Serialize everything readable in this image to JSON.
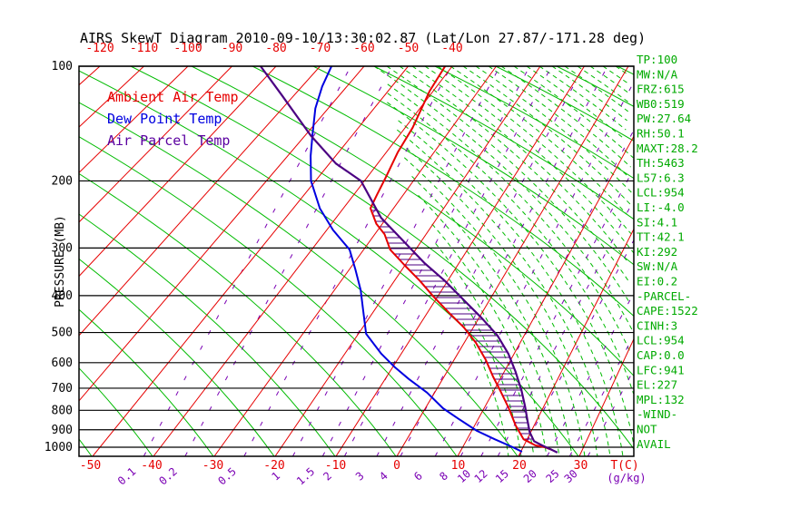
{
  "title": "AIRS SkewT Diagram 2010-09-10/13:30:02.87 (Lat/Lon 27.87/-171.28 deg)",
  "axes": {
    "pressure_label": "PRESSURE (MB)",
    "pressure_ticks": [
      100,
      200,
      300,
      400,
      500,
      600,
      700,
      800,
      900,
      1000
    ],
    "top_temp_ticks": [
      -120,
      -110,
      -100,
      -90,
      -80,
      -70,
      -60,
      -50,
      -40
    ],
    "bottom_temp_ticks": [
      -50,
      -40,
      -30,
      -20,
      -10,
      0,
      10,
      20,
      30
    ],
    "temp_label": "T(C)",
    "mixing_label": "(g/kg)",
    "mixing_ratio_ticks": [
      0.1,
      0.2,
      0.5,
      1,
      1.5,
      2,
      3,
      4,
      6,
      8,
      10,
      12,
      15,
      20,
      25,
      30
    ]
  },
  "stats_panel": [
    "TP:100",
    "MW:N/A",
    "FRZ:615",
    "WB0:519",
    "PW:27.64",
    "RH:50.1",
    "MAXT:28.2",
    "TH:5463",
    "L57:6.3",
    "LCL:954",
    "LI:-4.0",
    "SI:4.1",
    "TT:42.1",
    "KI:292",
    "SW:N/A",
    "EI:0.2",
    "-PARCEL-",
    "CAPE:1522",
    "CINH:3",
    "LCL:954",
    "CAP:0.0",
    "LFC:941",
    "EL:227",
    "MPL:132",
    "-WIND-",
    "NOT",
    "AVAIL"
  ],
  "colors": {
    "isotherm": "#e60000",
    "dry_adiabat": "#00bb00",
    "moist_adiabat": "#00bb00",
    "mixing_ratio": "#7a00b4",
    "pressure_line": "#000000",
    "panel_text": "#00aa00",
    "hatch": "#4b0082",
    "tick_red": "#e60000",
    "tick_purple": "#7a00b4"
  },
  "chart_data": {
    "type": "line",
    "note": "Skew-T log-P sounding; points are [pressure_mb, temperature_C]",
    "pressure_range": [
      100,
      1050
    ],
    "surface_temp_range": [
      -50,
      30
    ],
    "legend_position": "top-left inside plot",
    "grid": "skewed isotherms / dry adiabats / dashed moist adiabats / dashed mixing-ratio lines",
    "series": [
      {
        "name": "Ambient Air Temp",
        "color": "#e60000",
        "points": [
          [
            100,
            -41.6
          ],
          [
            116,
            -40.8
          ],
          [
            145,
            -38.4
          ],
          [
            168,
            -37.6
          ],
          [
            195,
            -36.2
          ],
          [
            218,
            -35.3
          ],
          [
            236,
            -34.6
          ],
          [
            259,
            -31.2
          ],
          [
            276,
            -28.1
          ],
          [
            303,
            -24.9
          ],
          [
            334,
            -19.9
          ],
          [
            366,
            -15.2
          ],
          [
            403,
            -10.7
          ],
          [
            445,
            -5.9
          ],
          [
            485,
            -1.7
          ],
          [
            532,
            2.1
          ],
          [
            590,
            5.6
          ],
          [
            652,
            8.5
          ],
          [
            715,
            11.3
          ],
          [
            790,
            14.2
          ],
          [
            877,
            16.9
          ],
          [
            953,
            19.4
          ],
          [
            989,
            21.9
          ],
          [
            1000,
            23.6
          ],
          [
            1016,
            25.0
          ]
        ]
      },
      {
        "name": "Dew Point Temp",
        "color": "#0000e0",
        "points": [
          [
            100,
            -67.4
          ],
          [
            113,
            -65.5
          ],
          [
            129,
            -62.8
          ],
          [
            150,
            -58.8
          ],
          [
            172,
            -55.2
          ],
          [
            200,
            -50.9
          ],
          [
            236,
            -44.7
          ],
          [
            269,
            -38.8
          ],
          [
            303,
            -32.7
          ],
          [
            341,
            -28.9
          ],
          [
            387,
            -25.1
          ],
          [
            433,
            -22.3
          ],
          [
            504,
            -18.6
          ],
          [
            569,
            -13.5
          ],
          [
            617,
            -9.6
          ],
          [
            662,
            -5.9
          ],
          [
            719,
            -1.3
          ],
          [
            790,
            3.0
          ],
          [
            843,
            6.7
          ],
          [
            906,
            10.9
          ],
          [
            953,
            14.6
          ],
          [
            1000,
            18.3
          ],
          [
            1028,
            20.2
          ]
        ]
      },
      {
        "name": "Air Parcel Temp",
        "color": "#4b0082",
        "points": [
          [
            100,
            -83.5
          ],
          [
            119,
            -72.8
          ],
          [
            152,
            -58.8
          ],
          [
            180,
            -48.7
          ],
          [
            200,
            -40.7
          ],
          [
            250,
            -31.1
          ],
          [
            286,
            -23.8
          ],
          [
            329,
            -16.5
          ],
          [
            366,
            -10.5
          ],
          [
            414,
            -4.4
          ],
          [
            457,
            0.4
          ],
          [
            509,
            5.2
          ],
          [
            569,
            9.0
          ],
          [
            634,
            12.0
          ],
          [
            708,
            14.7
          ],
          [
            781,
            16.8
          ],
          [
            849,
            18.4
          ],
          [
            912,
            19.8
          ],
          [
            964,
            21.3
          ],
          [
            989,
            23.0
          ],
          [
            1012,
            24.7
          ],
          [
            1033,
            26.1
          ]
        ]
      }
    ],
    "cape_hatch_pressure_range": [
      230,
      950
    ]
  }
}
